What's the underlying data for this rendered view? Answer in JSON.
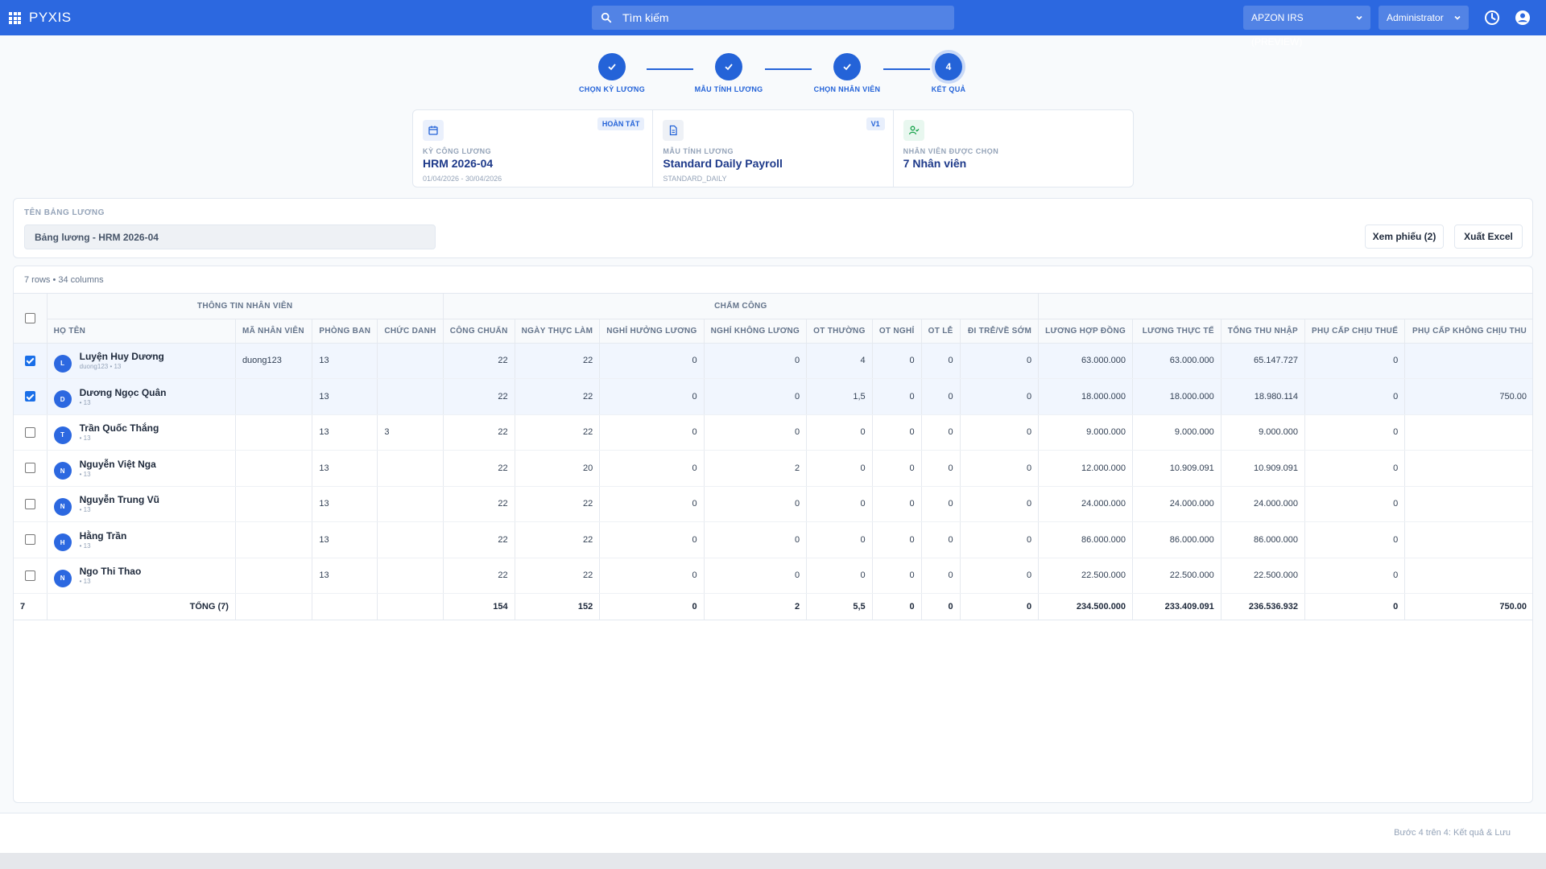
{
  "app": {
    "name": "PYXIS"
  },
  "header": {
    "search_placeholder": "Tìm kiếm",
    "tenant": "APZON IRS (PREVIEW)",
    "user": "Administrator"
  },
  "steps": [
    {
      "label": "CHỌN KỲ LƯƠNG",
      "state": "done"
    },
    {
      "label": "MẪU TÍNH LƯƠNG",
      "state": "done"
    },
    {
      "label": "CHỌN NHÂN VIÊN",
      "state": "done"
    },
    {
      "label": "KẾT QUẢ",
      "number": "4",
      "state": "active"
    }
  ],
  "summary": {
    "period": {
      "key": "KỲ CÔNG LƯƠNG",
      "value": "HRM 2026-04",
      "sub": "01/04/2026 - 30/04/2026",
      "badge": "HOÀN TẤT"
    },
    "template": {
      "key": "MẪU TÍNH LƯƠNG",
      "value": "Standard Daily Payroll",
      "sub": "STANDARD_DAILY",
      "badge": "V1"
    },
    "employees": {
      "key": "NHÂN VIÊN ĐƯỢC CHỌN",
      "value": "7 Nhân viên"
    }
  },
  "payroll_name": {
    "label": "TÊN BẢNG LƯƠNG",
    "value": "Bảng lương - HRM 2026-04",
    "view_button": "Xem phiếu (2)",
    "export_button": "Xuất Excel"
  },
  "table": {
    "meta": "7 rows • 34 columns",
    "groups": {
      "info": "THÔNG TIN NHÂN VIÊN",
      "attendance": "CHẤM CÔNG"
    },
    "columns": {
      "name": "HỌ TÊN",
      "code": "MÃ NHÂN VIÊN",
      "dept": "PHÒNG BAN",
      "title": "CHỨC DANH",
      "std": "CÔNG CHUẨN",
      "actual": "NGÀY THỰC LÀM",
      "paid_leave": "NGHỈ HƯỞNG LƯƠNG",
      "unpaid_leave": "NGHỈ KHÔNG LƯƠNG",
      "ot_normal": "OT THƯỜNG",
      "ot_off": "OT NGHỈ",
      "ot_holiday": "OT LỄ",
      "late": "ĐI TRỄ/VỀ SỚM",
      "contract_salary": "LƯƠNG HỢP ĐỒNG",
      "actual_salary": "LƯƠNG THỰC TẾ",
      "total_income": "TỔNG THU NHẬP",
      "taxable_allowance": "PHỤ CẤP CHỊU THUẾ",
      "nontax_allowance": "PHỤ CẤP KHÔNG CHỊU THU"
    },
    "rows": [
      {
        "selected": true,
        "initial": "L",
        "name": "Luyện Huy Dương",
        "sub": "duong123 • 13",
        "code": "duong123",
        "dept": "13",
        "title": "",
        "std": "22",
        "actual": "22",
        "paid_leave": "0",
        "unpaid_leave": "0",
        "ot_normal": "4",
        "ot_off": "0",
        "ot_holiday": "0",
        "late": "0",
        "contract_salary": "63.000.000",
        "actual_salary": "63.000.000",
        "total_income": "65.147.727",
        "taxable_allowance": "0",
        "nontax_allowance": ""
      },
      {
        "selected": true,
        "initial": "D",
        "name": "Dương Ngọc Quân",
        "sub": "• 13",
        "code": "",
        "dept": "13",
        "title": "",
        "std": "22",
        "actual": "22",
        "paid_leave": "0",
        "unpaid_leave": "0",
        "ot_normal": "1,5",
        "ot_off": "0",
        "ot_holiday": "0",
        "late": "0",
        "contract_salary": "18.000.000",
        "actual_salary": "18.000.000",
        "total_income": "18.980.114",
        "taxable_allowance": "0",
        "nontax_allowance": "750.00"
      },
      {
        "selected": false,
        "initial": "T",
        "name": "Trần Quốc Thắng",
        "sub": "• 13",
        "code": "",
        "dept": "13",
        "title": "3",
        "std": "22",
        "actual": "22",
        "paid_leave": "0",
        "unpaid_leave": "0",
        "ot_normal": "0",
        "ot_off": "0",
        "ot_holiday": "0",
        "late": "0",
        "contract_salary": "9.000.000",
        "actual_salary": "9.000.000",
        "total_income": "9.000.000",
        "taxable_allowance": "0",
        "nontax_allowance": ""
      },
      {
        "selected": false,
        "initial": "N",
        "name": "Nguyễn Việt Nga",
        "sub": "• 13",
        "code": "",
        "dept": "13",
        "title": "",
        "std": "22",
        "actual": "20",
        "paid_leave": "0",
        "unpaid_leave": "2",
        "ot_normal": "0",
        "ot_off": "0",
        "ot_holiday": "0",
        "late": "0",
        "contract_salary": "12.000.000",
        "actual_salary": "10.909.091",
        "total_income": "10.909.091",
        "taxable_allowance": "0",
        "nontax_allowance": ""
      },
      {
        "selected": false,
        "initial": "N",
        "name": "Nguyễn Trung Vũ",
        "sub": "• 13",
        "code": "",
        "dept": "13",
        "title": "",
        "std": "22",
        "actual": "22",
        "paid_leave": "0",
        "unpaid_leave": "0",
        "ot_normal": "0",
        "ot_off": "0",
        "ot_holiday": "0",
        "late": "0",
        "contract_salary": "24.000.000",
        "actual_salary": "24.000.000",
        "total_income": "24.000.000",
        "taxable_allowance": "0",
        "nontax_allowance": ""
      },
      {
        "selected": false,
        "initial": "H",
        "name": "Hằng Trần",
        "sub": "• 13",
        "code": "",
        "dept": "13",
        "title": "",
        "std": "22",
        "actual": "22",
        "paid_leave": "0",
        "unpaid_leave": "0",
        "ot_normal": "0",
        "ot_off": "0",
        "ot_holiday": "0",
        "late": "0",
        "contract_salary": "86.000.000",
        "actual_salary": "86.000.000",
        "total_income": "86.000.000",
        "taxable_allowance": "0",
        "nontax_allowance": ""
      },
      {
        "selected": false,
        "initial": "N",
        "name": "Ngo Thi Thao",
        "sub": "• 13",
        "code": "",
        "dept": "13",
        "title": "",
        "std": "22",
        "actual": "22",
        "paid_leave": "0",
        "unpaid_leave": "0",
        "ot_normal": "0",
        "ot_off": "0",
        "ot_holiday": "0",
        "late": "0",
        "contract_salary": "22.500.000",
        "actual_salary": "22.500.000",
        "total_income": "22.500.000",
        "taxable_allowance": "0",
        "nontax_allowance": ""
      }
    ],
    "totals": {
      "count": "7",
      "label": "TỔNG (7)",
      "std": "154",
      "actual": "152",
      "paid_leave": "0",
      "unpaid_leave": "2",
      "ot_normal": "5,5",
      "ot_off": "0",
      "ot_holiday": "0",
      "late": "0",
      "contract_salary": "234.500.000",
      "actual_salary": "233.409.091",
      "total_income": "236.536.932",
      "taxable_allowance": "0",
      "nontax_allowance": "750.00"
    }
  },
  "footer": {
    "text": "Bước 4 trên 4: Kết quả & Lưu"
  },
  "colors": {
    "primary": "#2c68e0",
    "step": "#2463d8",
    "selected_row": "#f1f6fe"
  }
}
